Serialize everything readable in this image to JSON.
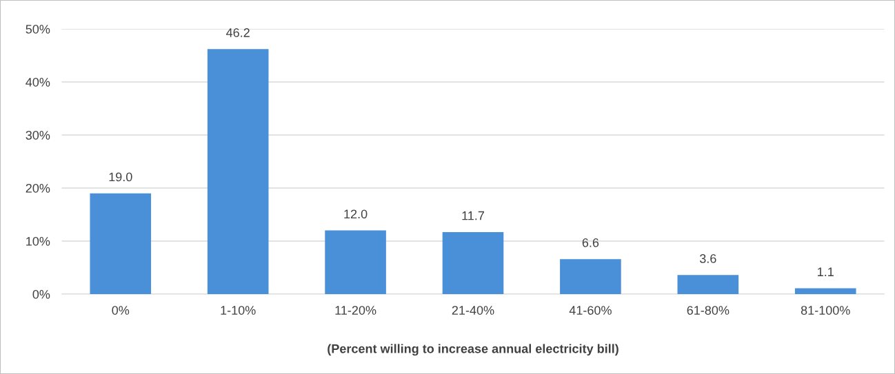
{
  "chart_data": {
    "type": "bar",
    "xlabel": "(Percent willing to increase annual electricity bill)",
    "categories": [
      "0%",
      "1-10%",
      "11-20%",
      "21-40%",
      "41-60%",
      "61-80%",
      "81-100%"
    ],
    "values": [
      19.0,
      46.2,
      12.0,
      11.7,
      6.6,
      3.6,
      1.1
    ],
    "color": "#4a90d9",
    "ylim": [
      0,
      50
    ],
    "yticks": [
      {
        "value": 0,
        "label": "0%"
      },
      {
        "value": 10,
        "label": "10%"
      },
      {
        "value": 20,
        "label": "20%"
      },
      {
        "value": 30,
        "label": "30%"
      },
      {
        "value": 40,
        "label": "40%"
      },
      {
        "value": 50,
        "label": "50%"
      }
    ],
    "value_labels": [
      "19.0",
      "46.2",
      "12.0",
      "11.7",
      "6.6",
      "3.6",
      "1.1"
    ],
    "grid": "y"
  }
}
